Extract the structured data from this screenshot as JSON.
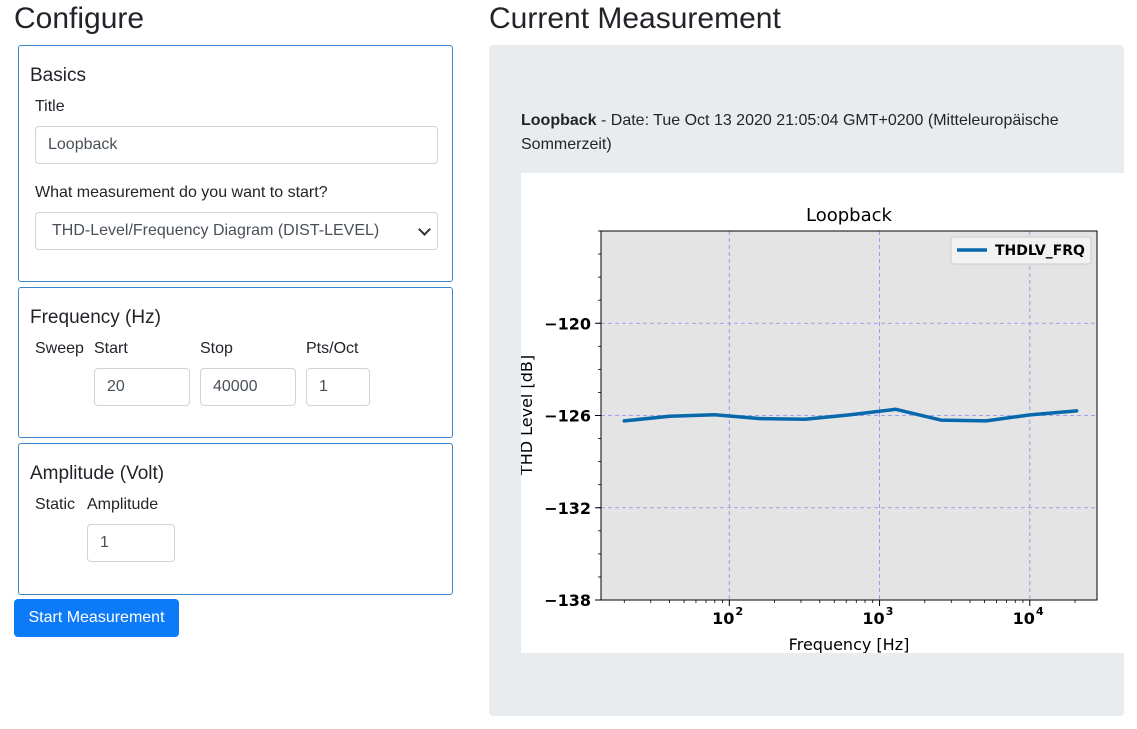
{
  "configure": {
    "heading": "Configure",
    "basics": {
      "heading": "Basics",
      "title_label": "Title",
      "title_value": "Loopback",
      "measurement_label": "What measurement do you want to start?",
      "measurement_selected": "THD-Level/Frequency Diagram (DIST-LEVEL)"
    },
    "frequency": {
      "heading": "Frequency (Hz)",
      "sweep_label": "Sweep",
      "start_label": "Start",
      "start_value": "20",
      "stop_label": "Stop",
      "stop_value": "40000",
      "ptsoct_label": "Pts/Oct",
      "ptsoct_value": "1"
    },
    "amplitude": {
      "heading": "Amplitude (Volt)",
      "static_label": "Static",
      "amplitude_label": "Amplitude",
      "amplitude_value": "1"
    },
    "start_button": "Start Measurement"
  },
  "measurement": {
    "heading": "Current Measurement",
    "name": "Loopback",
    "date_text": " - Date: Tue Oct 13 2020 21:05:04 GMT+0200 (Mitteleuropäische Sommerzeit)"
  },
  "chart_data": {
    "type": "line",
    "title": "Loopback",
    "xlabel": "Frequency [Hz]",
    "ylabel": "THD Level [dB]",
    "xscale": "log",
    "xlim": [
      14,
      28000
    ],
    "ylim": [
      -138,
      -114
    ],
    "yticks": [
      -120,
      -126,
      -132,
      -138
    ],
    "xticks": [
      100,
      1000,
      10000
    ],
    "xtick_labels": [
      {
        "base": "10",
        "exp": "2"
      },
      {
        "base": "10",
        "exp": "3"
      },
      {
        "base": "10",
        "exp": "4"
      }
    ],
    "grid": true,
    "legend_position": "top-right",
    "series": [
      {
        "name": "THDLV_FRQ",
        "color": "#0868ac",
        "x": [
          20,
          40,
          80,
          160,
          320,
          640,
          1280,
          2560,
          5120,
          10240,
          20480
        ],
        "y": [
          -126.35,
          -126.05,
          -125.95,
          -126.2,
          -126.25,
          -125.95,
          -125.6,
          -126.3,
          -126.35,
          -125.95,
          -125.7
        ]
      }
    ]
  }
}
